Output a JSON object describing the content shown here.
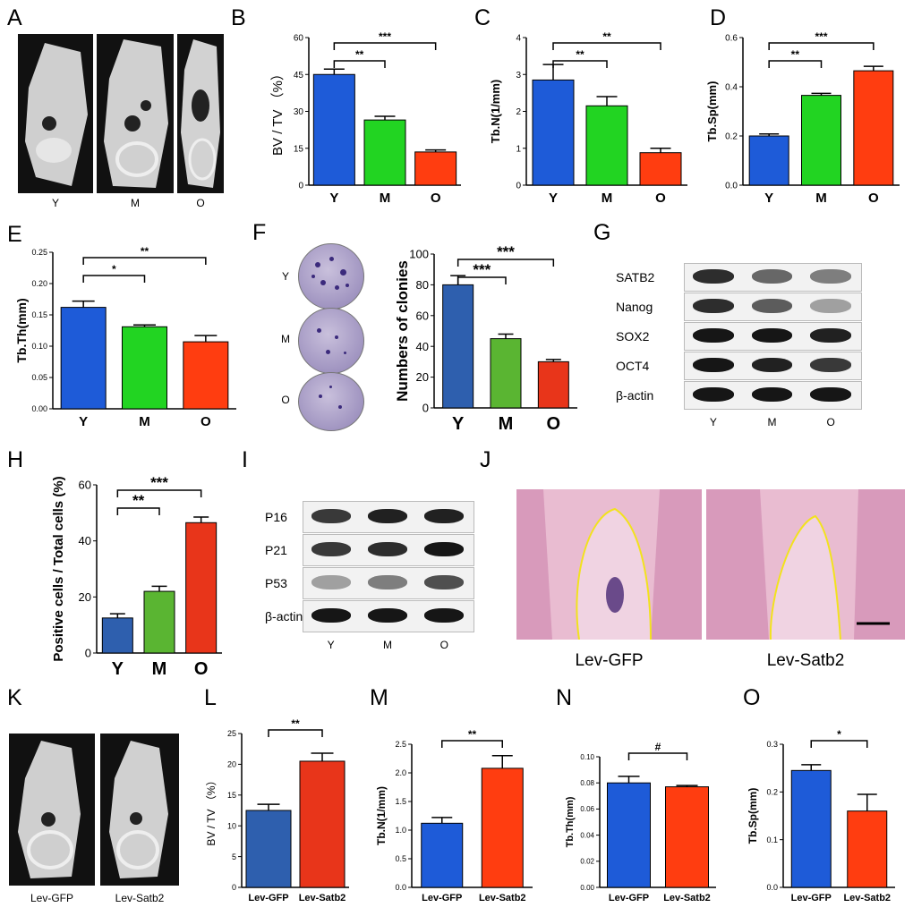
{
  "panel_letters": {
    "A": "A",
    "B": "B",
    "C": "C",
    "D": "D",
    "E": "E",
    "F": "F",
    "G": "G",
    "H": "H",
    "I": "I",
    "J": "J",
    "K": "K",
    "L": "L",
    "M": "M",
    "N": "N",
    "O": "O"
  },
  "panelA": {
    "captions": [
      "Y",
      "M",
      "O"
    ]
  },
  "panelF": {
    "dish_labels": [
      "Y",
      "M",
      "O"
    ]
  },
  "panelG": {
    "rows": [
      "SATB2",
      "Nanog",
      "SOX2",
      "OCT4",
      "β-actin"
    ],
    "lanes": [
      "Y",
      "M",
      "O"
    ]
  },
  "panelI": {
    "rows": [
      "P16",
      "P21",
      "P53",
      "β-actin"
    ],
    "lanes": [
      "Y",
      "M",
      "O"
    ]
  },
  "panelJ": {
    "captions": [
      "Lev-GFP",
      "Lev-Satb2"
    ]
  },
  "panelK": {
    "captions": [
      "Lev-GFP",
      "Lev-Satb2"
    ]
  },
  "colors": {
    "blue": "#1e5bd8",
    "green": "#22d422",
    "red": "#ff3d10",
    "darkblue": "#2e5fae",
    "lgreen": "#5ab532",
    "dred": "#e8351a"
  },
  "chart_data": [
    {
      "id": "B",
      "type": "bar",
      "categories": [
        "Y",
        "M",
        "O"
      ],
      "values": [
        45,
        26.5,
        13.5
      ],
      "errors": [
        2.2,
        1.5,
        0.8
      ],
      "ylabel": "BV / TV （%）",
      "ylim": [
        0,
        60
      ],
      "yticks": [
        0,
        15,
        30,
        45,
        60
      ],
      "sig": [
        {
          "from": 0,
          "to": 1,
          "label": "**"
        },
        {
          "from": 0,
          "to": 2,
          "label": "***"
        }
      ],
      "colors": [
        "#1e5bd8",
        "#22d422",
        "#ff3d10"
      ]
    },
    {
      "id": "C",
      "type": "bar",
      "categories": [
        "Y",
        "M",
        "O"
      ],
      "values": [
        2.85,
        2.15,
        0.88
      ],
      "errors": [
        0.42,
        0.25,
        0.12
      ],
      "ylabel": "Tb.N(1/mm)",
      "ylim": [
        0,
        4
      ],
      "yticks": [
        0,
        1,
        2,
        3,
        4
      ],
      "sig": [
        {
          "from": 0,
          "to": 1,
          "label": "**"
        },
        {
          "from": 0,
          "to": 2,
          "label": "**"
        }
      ],
      "colors": [
        "#1e5bd8",
        "#22d422",
        "#ff3d10"
      ]
    },
    {
      "id": "D",
      "type": "bar",
      "categories": [
        "Y",
        "M",
        "O"
      ],
      "values": [
        0.2,
        0.365,
        0.465
      ],
      "errors": [
        0.008,
        0.008,
        0.018
      ],
      "ylabel": "Tb.Sp(mm)",
      "ylim": [
        0,
        0.6
      ],
      "yticks": [
        "0.0",
        "0.2",
        "0.4",
        "0.6"
      ],
      "sig": [
        {
          "from": 0,
          "to": 1,
          "label": "**"
        },
        {
          "from": 0,
          "to": 2,
          "label": "***"
        }
      ],
      "colors": [
        "#1e5bd8",
        "#22d422",
        "#ff3d10"
      ]
    },
    {
      "id": "E",
      "type": "bar",
      "categories": [
        "Y",
        "M",
        "O"
      ],
      "values": [
        0.162,
        0.131,
        0.107
      ],
      "errors": [
        0.01,
        0.003,
        0.01
      ],
      "ylabel": "Tb.Th(mm)",
      "ylim": [
        0,
        0.25
      ],
      "yticks": [
        "0.00",
        "0.05",
        "0.10",
        "0.15",
        "0.20",
        "0.25"
      ],
      "sig": [
        {
          "from": 0,
          "to": 1,
          "label": "*"
        },
        {
          "from": 0,
          "to": 2,
          "label": "**"
        }
      ],
      "colors": [
        "#1e5bd8",
        "#22d422",
        "#ff3d10"
      ]
    },
    {
      "id": "F",
      "type": "bar",
      "categories": [
        "Y",
        "M",
        "O"
      ],
      "values": [
        80,
        45,
        30
      ],
      "errors": [
        6,
        3,
        1.5
      ],
      "ylabel": "Numbers of clonies",
      "ylim": [
        0,
        100
      ],
      "yticks": [
        0,
        20,
        40,
        60,
        80,
        100
      ],
      "sig": [
        {
          "from": 0,
          "to": 1,
          "label": "***"
        },
        {
          "from": 0,
          "to": 2,
          "label": "***"
        }
      ],
      "colors": [
        "#2e5fae",
        "#5ab532",
        "#e8351a"
      ]
    },
    {
      "id": "H",
      "type": "bar",
      "categories": [
        "Y",
        "M",
        "O"
      ],
      "values": [
        12.5,
        22,
        46.5
      ],
      "errors": [
        1.5,
        1.8,
        2
      ],
      "ylabel": "Positive cells / Total cells (%)",
      "ylim": [
        0,
        60
      ],
      "yticks": [
        0,
        20,
        40,
        60
      ],
      "sig": [
        {
          "from": 0,
          "to": 1,
          "label": "**"
        },
        {
          "from": 0,
          "to": 2,
          "label": "***"
        }
      ],
      "colors": [
        "#2e5fae",
        "#5ab532",
        "#e8351a"
      ]
    },
    {
      "id": "L",
      "type": "bar",
      "categories": [
        "Lev-GFP",
        "Lev-Satb2"
      ],
      "values": [
        12.5,
        20.5
      ],
      "errors": [
        1,
        1.3
      ],
      "ylabel": "BV / TV （%）",
      "ylim": [
        0,
        25
      ],
      "yticks": [
        0,
        5,
        10,
        15,
        20,
        25
      ],
      "sig": [
        {
          "from": 0,
          "to": 1,
          "label": "**"
        }
      ],
      "colors": [
        "#2e5fae",
        "#e8351a"
      ]
    },
    {
      "id": "M",
      "type": "bar",
      "categories": [
        "Lev-GFP",
        "Lev-Satb2"
      ],
      "values": [
        1.12,
        2.08
      ],
      "errors": [
        0.1,
        0.22
      ],
      "ylabel": "Tb.N(1/mm)",
      "ylim": [
        0,
        2.5
      ],
      "yticks": [
        "0.0",
        "0.5",
        "1.0",
        "1.5",
        "2.0",
        "2.5"
      ],
      "sig": [
        {
          "from": 0,
          "to": 1,
          "label": "**"
        }
      ],
      "colors": [
        "#1e5bd8",
        "#ff3d10"
      ]
    },
    {
      "id": "N",
      "type": "bar",
      "categories": [
        "Lev-GFP",
        "Lev-Satb2"
      ],
      "values": [
        0.08,
        0.077
      ],
      "errors": [
        0.005,
        0.001
      ],
      "ylabel": "Tb.Th(mm)",
      "ylim": [
        0,
        0.1
      ],
      "yticks": [
        "0.00",
        "0.02",
        "0.04",
        "0.06",
        "0.08",
        "0.10"
      ],
      "sig": [
        {
          "from": 0,
          "to": 1,
          "label": "#"
        }
      ],
      "colors": [
        "#1e5bd8",
        "#ff3d10"
      ]
    },
    {
      "id": "O",
      "type": "bar",
      "categories": [
        "Lev-GFP",
        "Lev-Satb2"
      ],
      "values": [
        0.245,
        0.16
      ],
      "errors": [
        0.012,
        0.035
      ],
      "ylabel": "Tb.Sp(mm)",
      "ylim": [
        0,
        0.3
      ],
      "yticks": [
        "0.0",
        "0.1",
        "0.2",
        "0.3"
      ],
      "sig": [
        {
          "from": 0,
          "to": 1,
          "label": "*"
        }
      ],
      "colors": [
        "#1e5bd8",
        "#ff3d10"
      ]
    }
  ]
}
